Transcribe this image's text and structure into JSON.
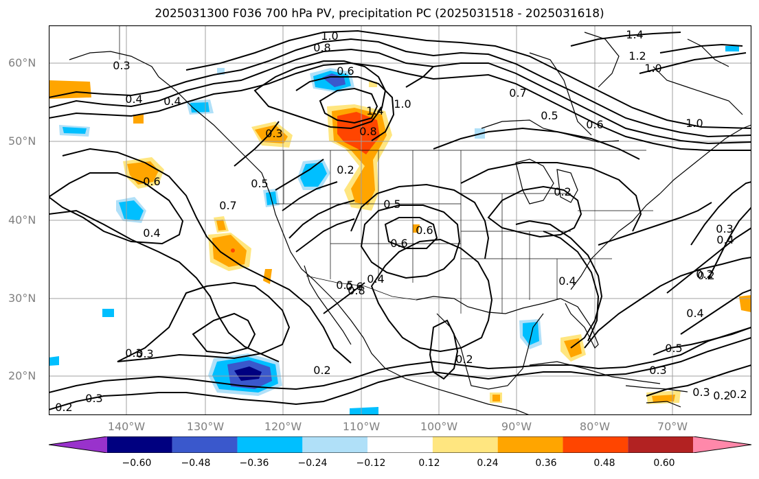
{
  "title": "2025031300 F036 700 hPa PV, precipitation PC (2025031518 - 2025031618)",
  "lat_labels": [
    "60°N",
    "50°N",
    "40°N",
    "30°N",
    "20°N"
  ],
  "lon_labels": [
    "140°W",
    "130°W",
    "120°W",
    "110°W",
    "100°W",
    "90°W",
    "80°W",
    "70°W"
  ],
  "contour_labels": [
    "1.0",
    "1.4",
    "1.2",
    "0.8",
    "1.0",
    "0.6",
    "0.7",
    "0.5",
    "0.6",
    "1.0",
    "0.4",
    "0.3",
    "0.4",
    "0.4",
    "0.3",
    "1.0",
    "0.8",
    "1.4",
    "0.2",
    "0.2",
    "0.5",
    "0.6",
    "0.5",
    "0.6",
    "0.7",
    "0.4",
    "0.3",
    "0.3",
    "0.2",
    "0.6",
    "0.4",
    "0.5",
    "0.3",
    "0.2",
    "0.4",
    "0.2",
    "0.2",
    "0.3",
    "0.3",
    "0.3",
    "0.5",
    "0.4",
    "0.2",
    "0.2",
    "0.6",
    "0.8",
    "0.2"
  ],
  "colorbar": {
    "ticks": [
      "−0.60",
      "−0.48",
      "−0.36",
      "−0.24",
      "−0.12",
      "0.12",
      "0.24",
      "0.36",
      "0.48",
      "0.60"
    ],
    "colors": [
      "#9932cc",
      "#000080",
      "#3a58cc",
      "#00bfff",
      "#b0e0f8",
      "#ffffff",
      "#ffe680",
      "#ffa500",
      "#ff4500",
      "#b22222",
      "#ff88aa"
    ]
  }
}
